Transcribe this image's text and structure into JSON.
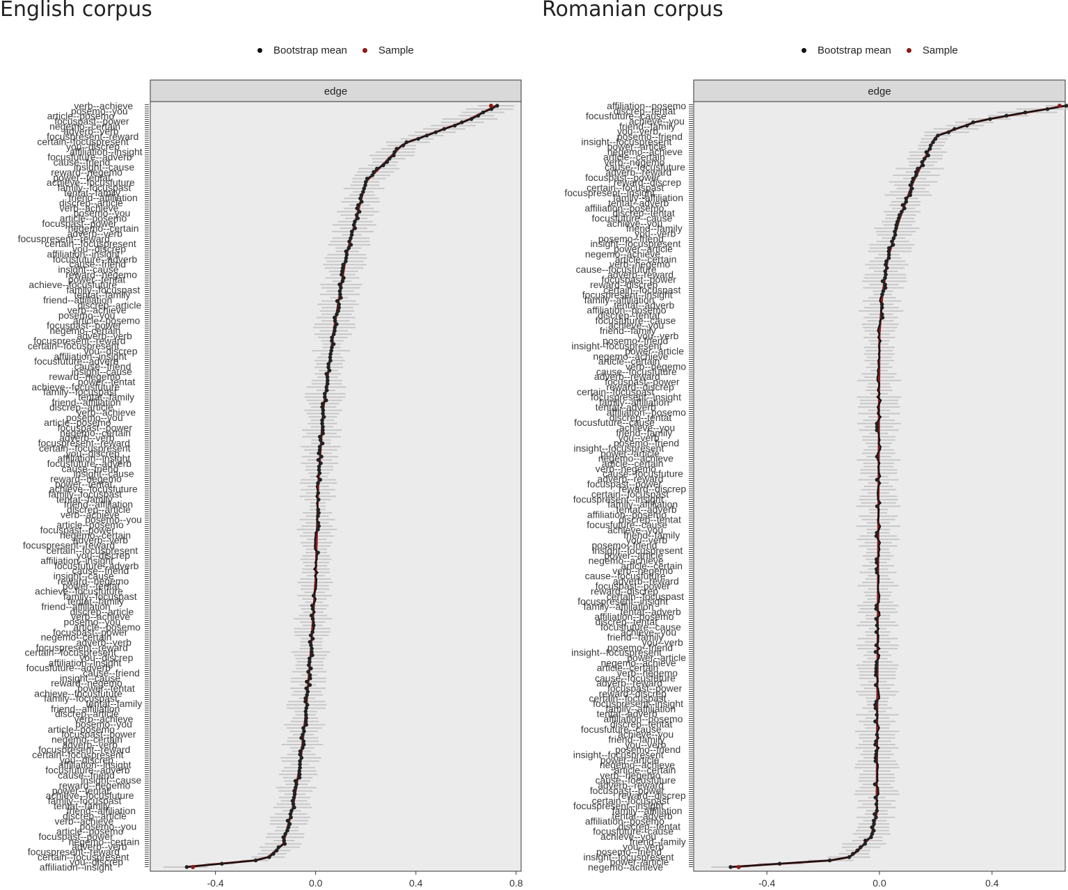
{
  "chart_data": [
    {
      "type": "line",
      "panel_title": "English corpus",
      "legend": [
        {
          "name": "Bootstrap mean",
          "color": "#111111"
        },
        {
          "name": "Sample",
          "color": "#8b1a1a"
        }
      ],
      "legend_position": "top",
      "facet_label": "edge",
      "x_ticks": [
        "-0.4",
        "0.0",
        "0.4",
        "0.8"
      ],
      "x_tick_values": [
        -0.4,
        0.0,
        0.4,
        0.8
      ],
      "xlim": [
        -0.66,
        0.82
      ],
      "grid": false,
      "y_labels_visible": [
        "verb",
        "focuspast",
        "focuspresent",
        "affiliation",
        "insight",
        "achieve",
        "friend",
        "posemo",
        "negemo",
        "certain",
        "focusfuture",
        "reward",
        "family",
        "discrep",
        "article",
        "adverb",
        "you",
        "cause",
        "power",
        "tentat"
      ],
      "edge_distribution": {
        "max_value": 0.72,
        "min_value": -0.52,
        "upper_knots": [
          [
            0.0,
            0.72
          ],
          [
            0.02,
            0.6
          ],
          [
            0.05,
            0.35
          ],
          [
            0.1,
            0.2
          ],
          [
            0.2,
            0.12
          ],
          [
            0.3,
            0.07
          ],
          [
            0.4,
            0.03
          ],
          [
            0.5,
            0.01
          ],
          [
            0.62,
            0.0
          ]
        ],
        "lower_knots": [
          [
            0.62,
            0.0
          ],
          [
            0.72,
            -0.02
          ],
          [
            0.8,
            -0.04
          ],
          [
            0.86,
            -0.06
          ],
          [
            0.92,
            -0.09
          ],
          [
            0.97,
            -0.13
          ],
          [
            0.99,
            -0.2
          ],
          [
            1.0,
            -0.52
          ]
        ]
      }
    },
    {
      "type": "line",
      "panel_title": "Romanian corpus",
      "legend": [
        {
          "name": "Bootstrap mean",
          "color": "#111111"
        },
        {
          "name": "Sample",
          "color": "#8b1a1a"
        }
      ],
      "legend_position": "top",
      "facet_label": "edge",
      "x_ticks": [
        "-0.4",
        "0.0",
        "0.4"
      ],
      "x_tick_values": [
        -0.4,
        0.0,
        0.4
      ],
      "xlim": [
        -0.66,
        0.66
      ],
      "grid": false,
      "y_labels_visible": [
        "verb",
        "focuspast",
        "focuspresent",
        "affiliation",
        "achieve",
        "posemo",
        "negemo",
        "cause",
        "reward",
        "family",
        "discrep",
        "friend",
        "insight",
        "article",
        "adverb",
        "certain",
        "tentat",
        "focusfuture",
        "you",
        "power"
      ],
      "edge_distribution": {
        "max_value": 0.66,
        "min_value": -0.53,
        "upper_knots": [
          [
            0.0,
            0.66
          ],
          [
            0.02,
            0.35
          ],
          [
            0.04,
            0.2
          ],
          [
            0.1,
            0.12
          ],
          [
            0.15,
            0.07
          ],
          [
            0.2,
            0.03
          ],
          [
            0.25,
            0.01
          ],
          [
            0.3,
            0.0
          ]
        ],
        "lower_knots": [
          [
            0.3,
            0.0
          ],
          [
            0.93,
            -0.01
          ],
          [
            0.96,
            -0.03
          ],
          [
            0.98,
            -0.08
          ],
          [
            0.99,
            -0.12
          ],
          [
            1.0,
            -0.53
          ]
        ]
      }
    }
  ]
}
